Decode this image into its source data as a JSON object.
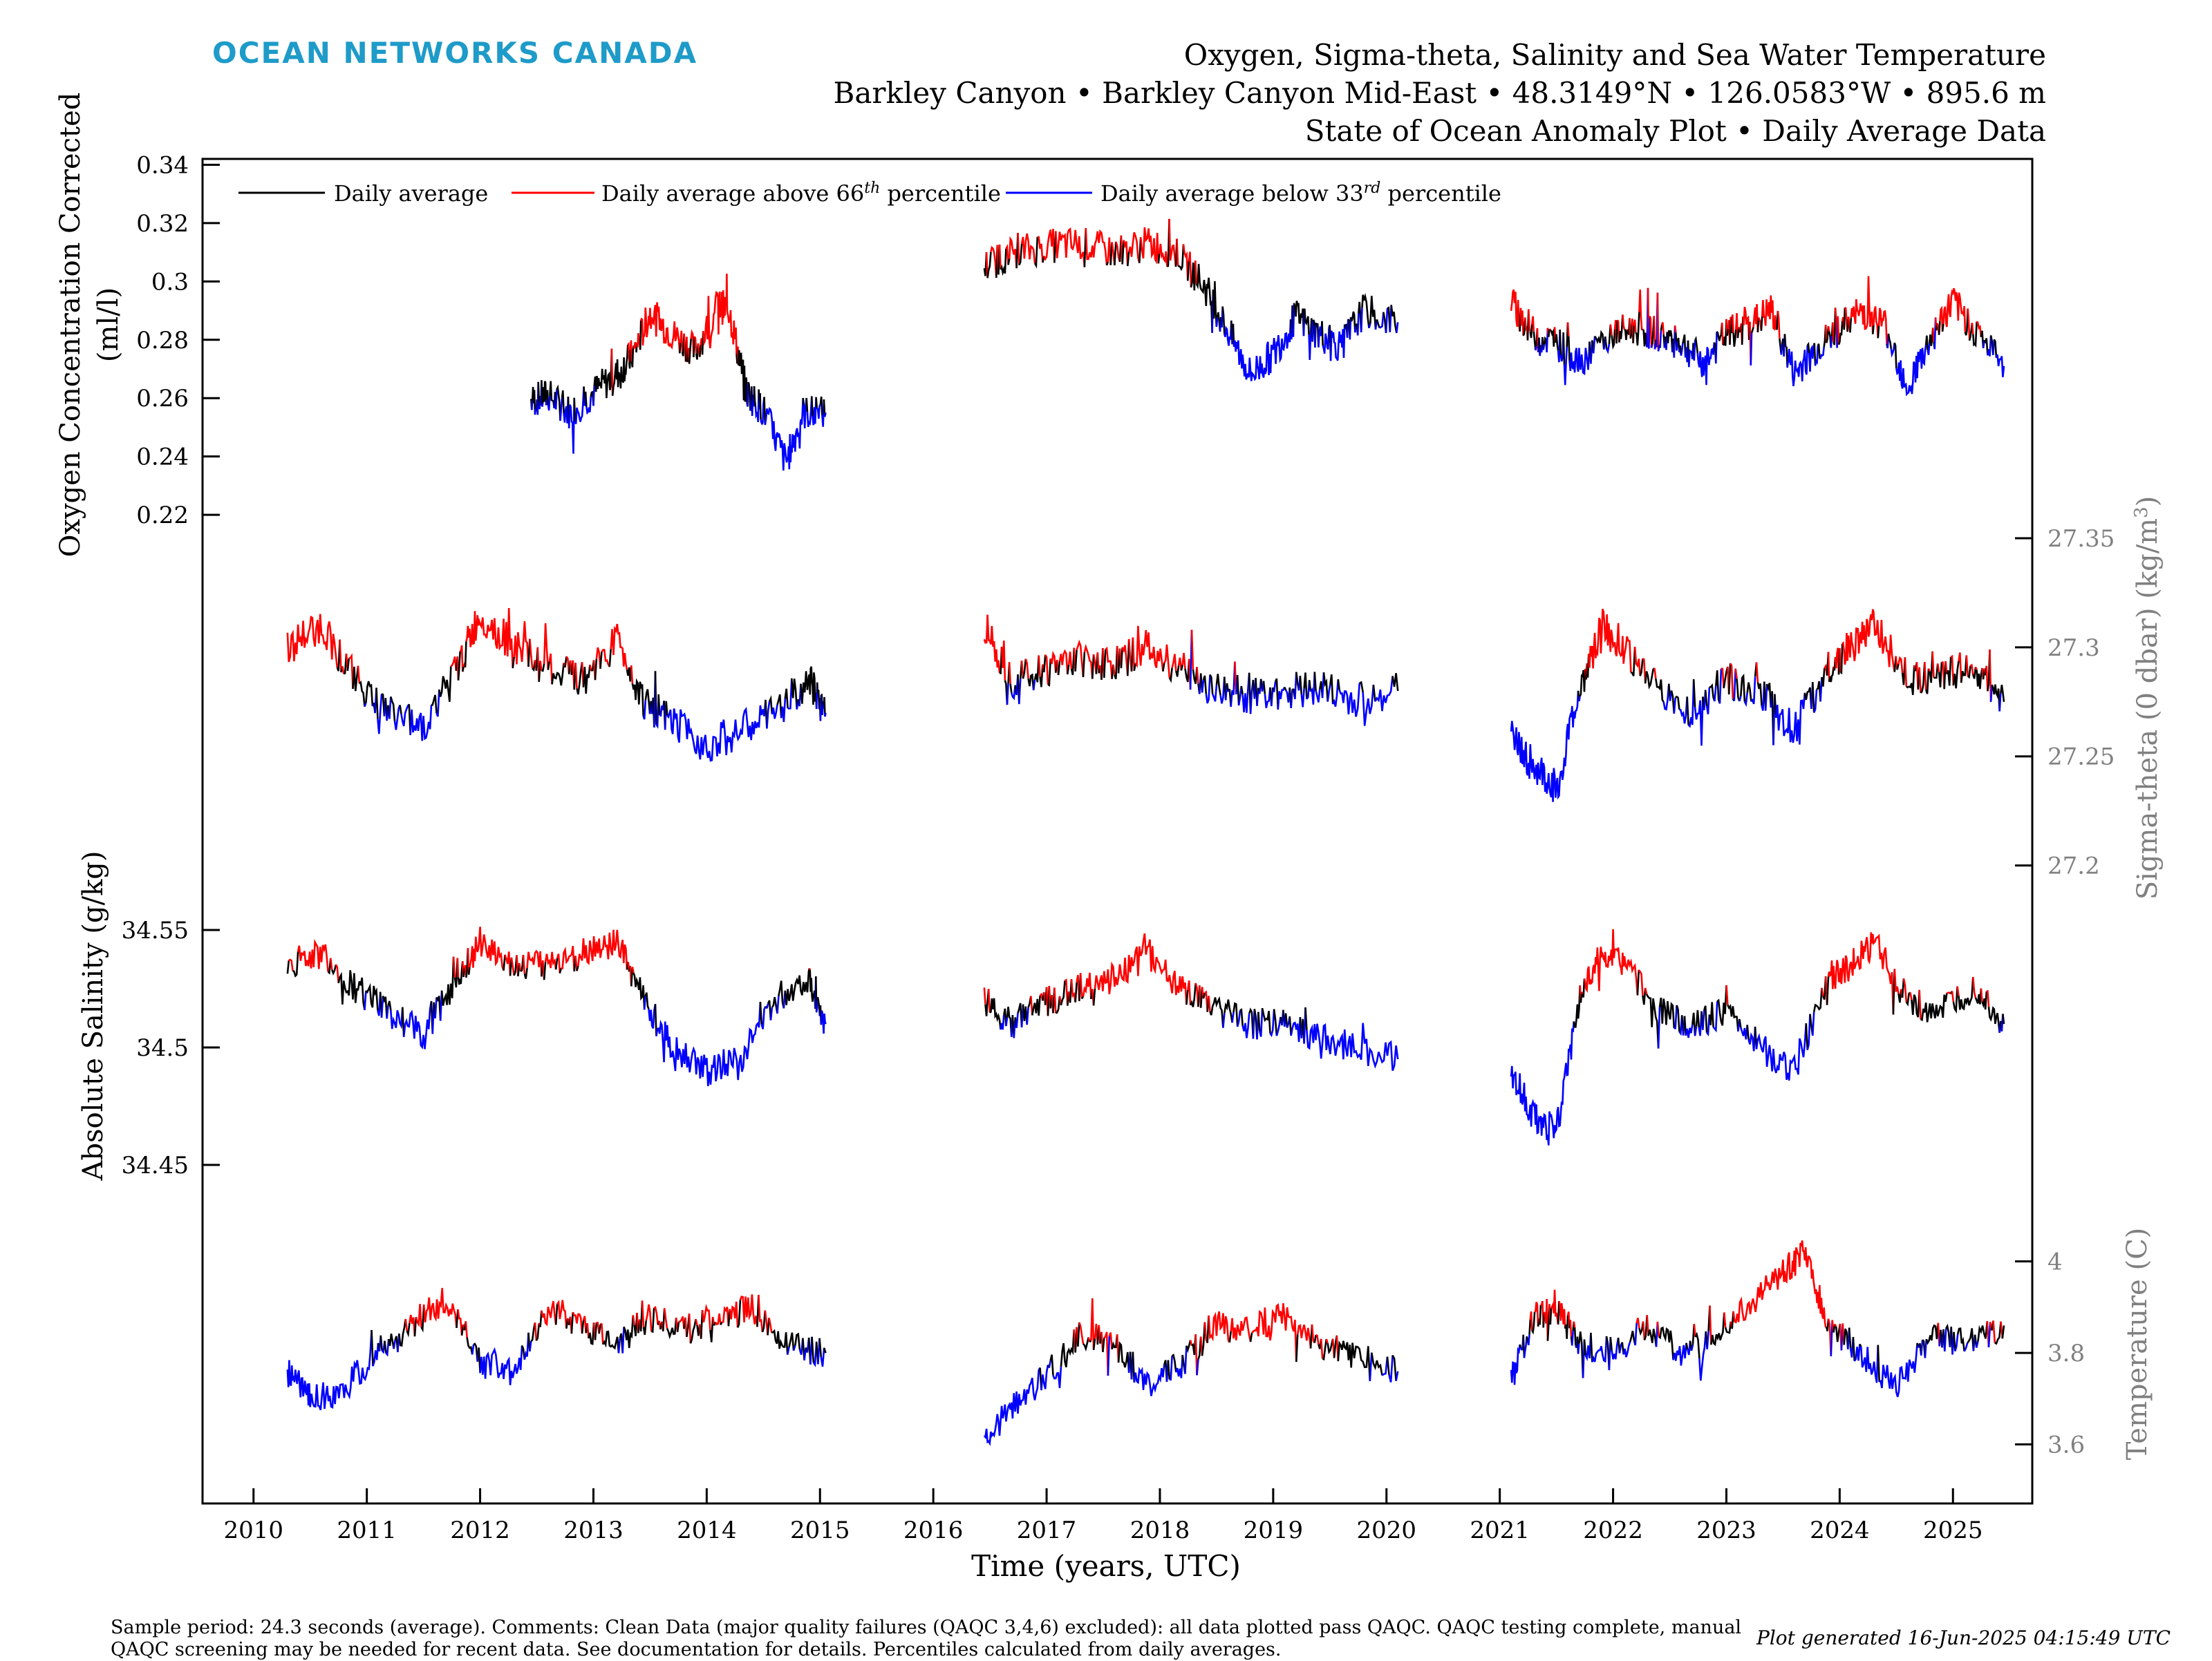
{
  "header": {
    "brand": "OCEAN NETWORKS CANADA",
    "title_line1": "Oxygen, Sigma-theta, Salinity and Sea Water Temperature",
    "title_line2": "Barkley Canyon • Barkley Canyon Mid-East • 48.3149°N • 126.0583°W • 895.6 m",
    "title_line3": "State of Ocean Anomaly Plot • Daily Average Data"
  },
  "legend": {
    "daily": "Daily average",
    "above_prefix": "Daily average above 66",
    "above_sup": "th",
    "above_suffix": " percentile",
    "below_prefix": "Daily average below 33",
    "below_sup": "rd",
    "below_suffix": " percentile"
  },
  "colors": {
    "daily": "#000000",
    "above": "#ff0000",
    "below": "#0000ff",
    "brand": "#1e9bc9",
    "right_axis": "#808080"
  },
  "footer": {
    "comments": "Sample period: 24.3 seconds (average). Comments: Clean Data (major quality failures (QAQC 3,4,6) excluded): all data plotted pass QAQC. QAQC testing complete, manual QAQC screening may be needed for recent data. See documentation for details. Percentiles calculated from daily averages.",
    "generated": "Plot generated 16-Jun-2025 04:15:49 UTC"
  },
  "chart_data": {
    "type": "line",
    "x_axis": {
      "label": "Time (years, UTC)",
      "range": [
        2009.55,
        2025.7
      ],
      "ticks": [
        "2010",
        "2011",
        "2012",
        "2013",
        "2014",
        "2015",
        "2016",
        "2017",
        "2018",
        "2019",
        "2020",
        "2021",
        "2022",
        "2023",
        "2024",
        "2025"
      ]
    },
    "panels": [
      {
        "id": "oxygen",
        "axis_side": "left",
        "label_line1": "Oxygen Concentration Corrected",
        "label_line2": "(ml/l)",
        "ticks": [
          "0.22",
          "0.24",
          "0.26",
          "0.28",
          "0.3",
          "0.32",
          "0.34"
        ],
        "range": [
          0.207,
          0.342
        ],
        "segments": [
          {
            "x": [
              2012.45,
              2012.6,
              2012.8,
              2013.0,
              2013.2,
              2013.35,
              2013.5,
              2013.7,
              2013.9,
              2014.1,
              2014.2,
              2014.35,
              2014.5,
              2014.7,
              2014.85,
              2015.05
            ],
            "y": [
              0.259,
              0.261,
              0.255,
              0.262,
              0.268,
              0.275,
              0.289,
              0.282,
              0.276,
              0.292,
              0.29,
              0.262,
              0.256,
              0.238,
              0.255,
              0.255
            ]
          },
          {
            "x": [
              2016.45,
              2016.7,
              2017.0,
              2017.3,
              2017.6,
              2017.9,
              2018.15,
              2018.4,
              2018.6,
              2018.8,
              2019.0,
              2019.2,
              2019.4,
              2019.6,
              2019.8,
              2020.1
            ],
            "y": [
              0.305,
              0.31,
              0.312,
              0.313,
              0.31,
              0.313,
              0.31,
              0.298,
              0.283,
              0.268,
              0.275,
              0.288,
              0.282,
              0.278,
              0.29,
              0.286
            ]
          },
          {
            "x": [
              2021.1,
              2021.3,
              2021.5,
              2021.7,
              2022.0,
              2022.2,
              2022.4,
              2022.6,
              2022.8,
              2023.0,
              2023.2,
              2023.4,
              2023.6,
              2023.8,
              2024.0,
              2024.2,
              2024.4,
              2024.6,
              2024.8,
              2025.0,
              2025.2,
              2025.45
            ],
            "y": [
              0.293,
              0.282,
              0.279,
              0.273,
              0.282,
              0.284,
              0.282,
              0.279,
              0.272,
              0.282,
              0.285,
              0.29,
              0.268,
              0.277,
              0.284,
              0.29,
              0.285,
              0.264,
              0.28,
              0.293,
              0.283,
              0.271
            ]
          }
        ]
      },
      {
        "id": "sigma",
        "axis_side": "right",
        "label": "Sigma-theta (0 dbar) (kg/m",
        "label_sup": "3",
        "label_end": ")",
        "ticks": [
          "27.2",
          "27.25",
          "27.3",
          "27.35"
        ],
        "range": [
          27.185,
          27.375
        ],
        "segments": [
          {
            "x": [
              2010.3,
              2010.6,
              2010.9,
              2011.2,
              2011.5,
              2011.8,
              2012.0,
              2012.3,
              2012.6,
              2012.9,
              2013.2,
              2013.45,
              2013.7,
              2014.0,
              2014.3,
              2014.6,
              2014.9,
              2015.05
            ],
            "y": [
              27.3,
              27.31,
              27.285,
              27.27,
              27.265,
              27.29,
              27.315,
              27.3,
              27.29,
              27.285,
              27.305,
              27.275,
              27.265,
              27.255,
              27.262,
              27.27,
              27.285,
              27.27
            ]
          },
          {
            "x": [
              2016.45,
              2016.7,
              2017.0,
              2017.3,
              2017.6,
              2017.9,
              2018.2,
              2018.5,
              2018.8,
              2019.1,
              2019.4,
              2019.7,
              2020.1
            ],
            "y": [
              27.31,
              27.285,
              27.29,
              27.295,
              27.292,
              27.3,
              27.29,
              27.28,
              27.278,
              27.28,
              27.282,
              27.275,
              27.28
            ]
          },
          {
            "x": [
              2021.1,
              2021.3,
              2021.5,
              2021.7,
              2021.9,
              2022.1,
              2022.4,
              2022.7,
              2023.0,
              2023.3,
              2023.6,
              2023.9,
              2024.1,
              2024.3,
              2024.6,
              2024.9,
              2025.2,
              2025.45
            ],
            "y": [
              27.26,
              27.245,
              27.235,
              27.28,
              27.31,
              27.3,
              27.28,
              27.27,
              27.285,
              27.28,
              27.262,
              27.29,
              27.3,
              27.31,
              27.285,
              27.288,
              27.29,
              27.275
            ]
          }
        ]
      },
      {
        "id": "salinity",
        "axis_side": "left",
        "label": "Absolute Salinity (g/kg)",
        "ticks": [
          "34.45",
          "34.5",
          "34.55"
        ],
        "range": [
          34.44,
          34.59
        ],
        "segments": [
          {
            "x": [
              2010.3,
              2010.6,
              2010.9,
              2011.2,
              2011.5,
              2011.8,
              2012.0,
              2012.3,
              2012.6,
              2012.9,
              2013.2,
              2013.45,
              2013.7,
              2014.0,
              2014.3,
              2014.6,
              2014.9,
              2015.05
            ],
            "y": [
              34.535,
              34.54,
              34.525,
              34.515,
              34.505,
              34.53,
              34.545,
              34.535,
              34.535,
              34.54,
              34.545,
              34.52,
              34.5,
              34.49,
              34.495,
              34.52,
              34.53,
              34.51
            ]
          },
          {
            "x": [
              2016.45,
              2016.7,
              2017.0,
              2017.3,
              2017.6,
              2017.9,
              2018.2,
              2018.5,
              2018.8,
              2019.1,
              2019.4,
              2019.7,
              2020.1
            ],
            "y": [
              34.52,
              34.51,
              34.52,
              34.525,
              34.53,
              34.54,
              34.525,
              34.515,
              34.51,
              34.51,
              34.505,
              34.5,
              34.495
            ]
          },
          {
            "x": [
              2021.1,
              2021.3,
              2021.5,
              2021.7,
              2021.9,
              2022.1,
              2022.4,
              2022.7,
              2023.0,
              2023.3,
              2023.6,
              2023.9,
              2024.1,
              2024.3,
              2024.6,
              2024.9,
              2025.2,
              2025.45
            ],
            "y": [
              34.49,
              34.47,
              34.465,
              34.52,
              34.54,
              34.535,
              34.515,
              34.51,
              34.515,
              34.5,
              34.49,
              34.53,
              34.535,
              34.545,
              34.52,
              34.515,
              34.525,
              34.51
            ]
          }
        ]
      },
      {
        "id": "temperature",
        "axis_side": "right",
        "label": "Temperature (C)",
        "ticks": [
          "3.6",
          "3.8",
          "4"
        ],
        "range": [
          3.48,
          4.22
        ],
        "segments": [
          {
            "x": [
              2010.3,
              2010.5,
              2010.8,
              2011.1,
              2011.4,
              2011.7,
              2012.0,
              2012.3,
              2012.6,
              2012.9,
              2013.2,
              2013.5,
              2013.8,
              2014.1,
              2014.4,
              2014.7,
              2015.05
            ],
            "y": [
              3.76,
              3.7,
              3.72,
              3.8,
              3.86,
              3.92,
              3.78,
              3.75,
              3.9,
              3.86,
              3.82,
              3.88,
              3.85,
              3.87,
              3.9,
              3.82,
              3.8
            ]
          },
          {
            "x": [
              2016.45,
              2016.7,
              2017.0,
              2017.3,
              2017.6,
              2017.9,
              2018.2,
              2018.5,
              2018.8,
              2019.1,
              2019.4,
              2019.7,
              2020.1
            ],
            "y": [
              3.62,
              3.68,
              3.75,
              3.84,
              3.82,
              3.73,
              3.78,
              3.86,
              3.85,
              3.88,
              3.82,
              3.8,
              3.76
            ]
          },
          {
            "x": [
              2021.1,
              2021.3,
              2021.5,
              2021.7,
              2022.0,
              2022.3,
              2022.6,
              2022.9,
              2023.2,
              2023.5,
              2023.7,
              2023.9,
              2024.2,
              2024.5,
              2024.8,
              2025.1,
              2025.45
            ],
            "y": [
              3.74,
              3.88,
              3.9,
              3.82,
              3.8,
              3.86,
              3.8,
              3.84,
              3.9,
              3.98,
              4.02,
              3.86,
              3.8,
              3.72,
              3.84,
              3.82,
              3.86
            ]
          }
        ]
      }
    ]
  }
}
